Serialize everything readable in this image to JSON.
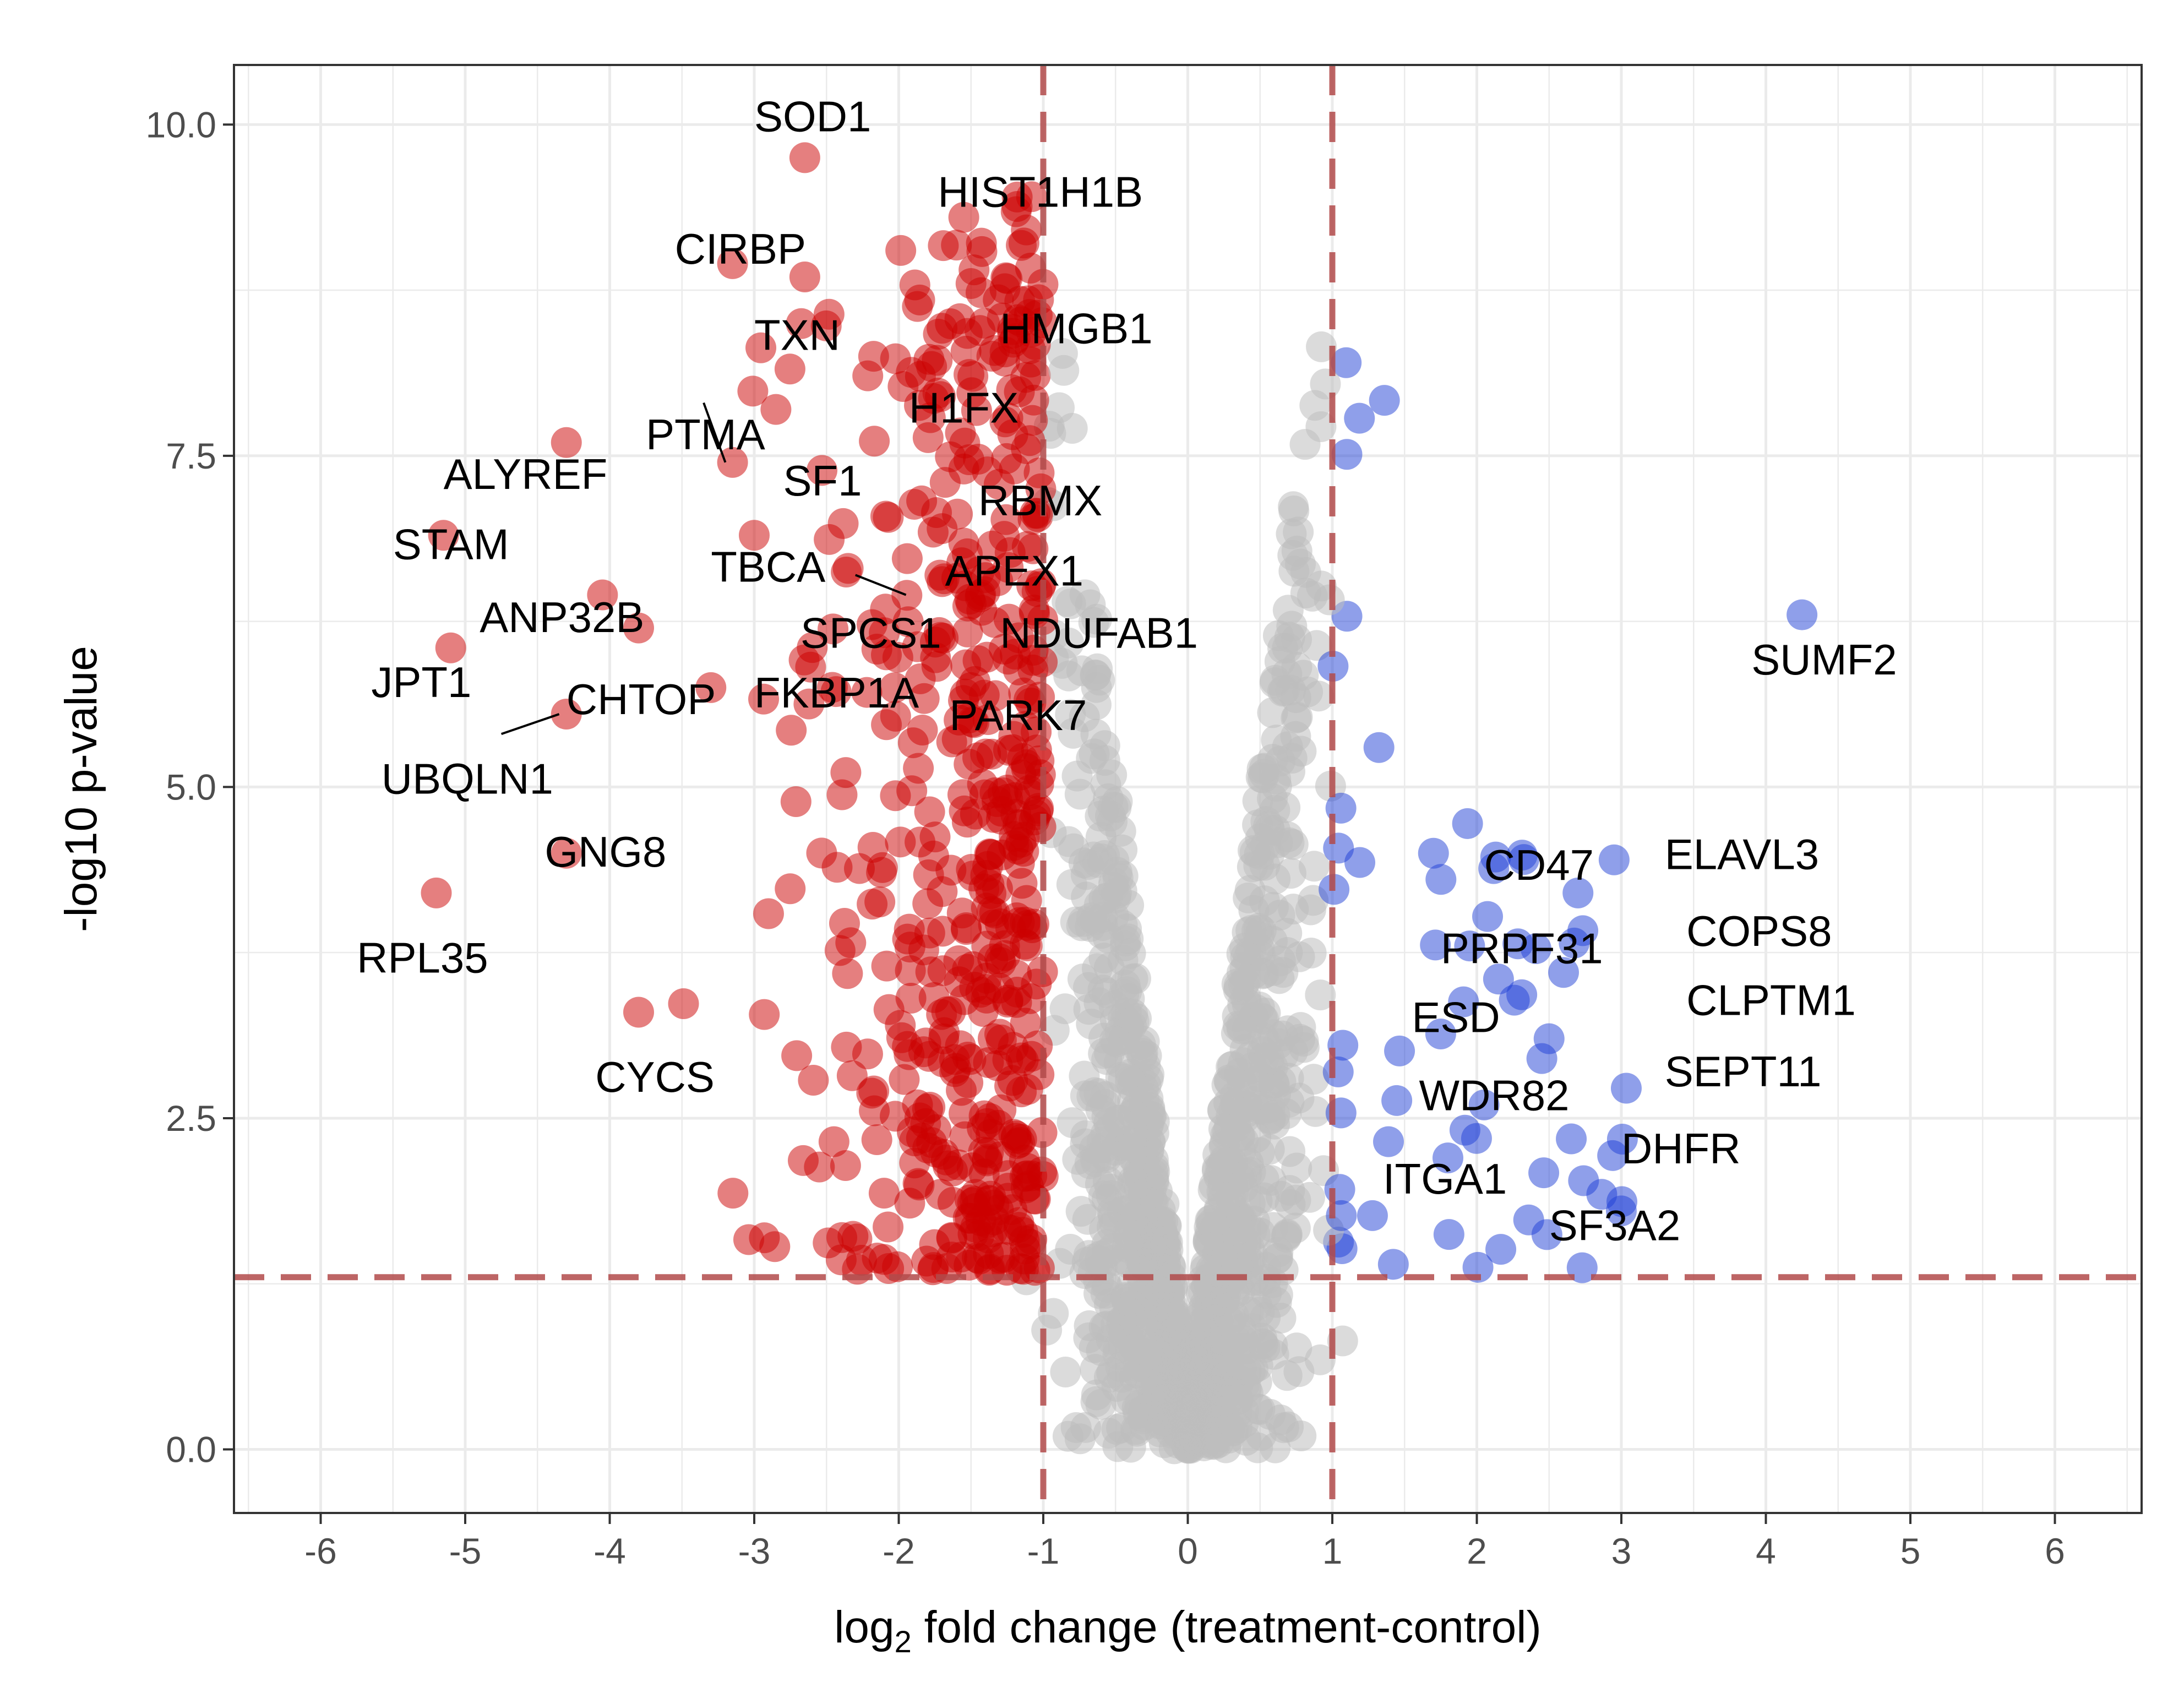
{
  "chart_data": {
    "type": "scatter",
    "title": "",
    "xlabel": {
      "base": "log",
      "sub": "2",
      "rest": " fold change (treatment-control)"
    },
    "ylabel": "-log10 p-value",
    "xlim": [
      -6.6,
      6.6
    ],
    "ylim": [
      -0.48,
      10.45
    ],
    "x_ticks": [
      -6,
      -5,
      -4,
      -3,
      -2,
      -1,
      0,
      1,
      2,
      3,
      4,
      5,
      6
    ],
    "x_tick_labels": [
      "-6",
      "-5",
      "-4",
      "-3",
      "-2",
      "-1",
      "0",
      "1",
      "2",
      "3",
      "4",
      "5",
      "6"
    ],
    "y_ticks": [
      0,
      2.5,
      5,
      7.5,
      10
    ],
    "y_tick_labels": [
      "0.0",
      "2.5",
      "5.0",
      "7.5",
      "10.0"
    ],
    "grid": true,
    "threshold_lines": {
      "fold_change": [
        -1,
        1
      ],
      "pvalue": 1.3
    },
    "colors": {
      "down": "#cc0000",
      "up": "#1f3fd6",
      "ns": "#bdbdbd",
      "threshold": "#b24a4a",
      "grid": "#ebebeb",
      "border": "#333333"
    },
    "labeled_points": [
      {
        "gene": "SOD1",
        "x": -2.65,
        "y": 9.75,
        "group": "down"
      },
      {
        "gene": "HIST1H1B",
        "x": -1.55,
        "y": 9.3,
        "group": "down"
      },
      {
        "gene": "CIRBP",
        "x": -3.15,
        "y": 8.95,
        "group": "down"
      },
      {
        "gene": "HMGB1",
        "x": -1.5,
        "y": 8.8,
        "group": "down"
      },
      {
        "gene": "TXN",
        "x": -2.65,
        "y": 8.85,
        "group": "down"
      },
      {
        "gene": "H1FX",
        "x": -1.85,
        "y": 8.1,
        "group": "down"
      },
      {
        "gene": "PTMA",
        "x": -3.15,
        "y": 7.45,
        "group": "down"
      },
      {
        "gene": "SF1",
        "x": -2.85,
        "y": 7.85,
        "group": "down"
      },
      {
        "gene": "ALYREF",
        "x": -4.3,
        "y": 7.6,
        "group": "down"
      },
      {
        "gene": "RBMX",
        "x": -1.55,
        "y": 7.4,
        "group": "down"
      },
      {
        "gene": "STAM",
        "x": -5.15,
        "y": 6.9,
        "group": "down"
      },
      {
        "gene": "TBCA",
        "x": -3.0,
        "y": 6.9,
        "group": "down"
      },
      {
        "gene": "APEX1",
        "x": -1.7,
        "y": 6.95,
        "group": "down"
      },
      {
        "gene": "ANP32B",
        "x": -4.05,
        "y": 6.45,
        "group": "down"
      },
      {
        "gene": "SPCS1",
        "x": -2.35,
        "y": 6.65,
        "group": "down"
      },
      {
        "gene": "NDUFAB1",
        "x": -1.7,
        "y": 6.55,
        "group": "down"
      },
      {
        "gene": "JPT1",
        "x": -5.1,
        "y": 6.05,
        "group": "down"
      },
      {
        "gene": "CHTOP",
        "x": -3.8,
        "y": 6.2,
        "group": "down"
      },
      {
        "gene": "FKBP1A",
        "x": -3.3,
        "y": 5.75,
        "group": "down"
      },
      {
        "gene": "PARK7",
        "x": -1.5,
        "y": 5.75,
        "group": "down"
      },
      {
        "gene": "UBQLN1",
        "x": -4.3,
        "y": 5.55,
        "group": "down"
      },
      {
        "gene": "GNG8",
        "x": -4.3,
        "y": 4.5,
        "group": "down"
      },
      {
        "gene": "RPL35",
        "x": -5.2,
        "y": 4.2,
        "group": "down"
      },
      {
        "gene": "CYCS",
        "x": -3.8,
        "y": 3.3,
        "group": "down"
      },
      {
        "gene": "SUMF2",
        "x": 4.25,
        "y": 6.3,
        "group": "up"
      },
      {
        "gene": "CD47",
        "x": 1.7,
        "y": 4.5,
        "group": "up"
      },
      {
        "gene": "ELAVL3",
        "x": 2.95,
        "y": 4.45,
        "group": "up"
      },
      {
        "gene": "COPS8",
        "x": 2.7,
        "y": 4.2,
        "group": "up"
      },
      {
        "gene": "PRPF31",
        "x": 1.95,
        "y": 3.8,
        "group": "up"
      },
      {
        "gene": "CLPTM1",
        "x": 2.6,
        "y": 3.6,
        "group": "up"
      },
      {
        "gene": "ESD",
        "x": 2.15,
        "y": 3.55,
        "group": "up"
      },
      {
        "gene": "SEPT11",
        "x": 2.5,
        "y": 3.1,
        "group": "up"
      },
      {
        "gene": "WDR82",
        "x": 2.45,
        "y": 2.95,
        "group": "up"
      },
      {
        "gene": "DHFR",
        "x": 2.05,
        "y": 2.6,
        "group": "up"
      },
      {
        "gene": "ITGA1",
        "x": 1.8,
        "y": 2.2,
        "group": "up"
      },
      {
        "gene": "SF3A2",
        "x": 3.0,
        "y": 1.8,
        "group": "up"
      }
    ],
    "gene_label_positions": [
      {
        "gene": "SOD1",
        "x": -3.0,
        "y": 9.95
      },
      {
        "gene": "HIST1H1B",
        "x": -1.73,
        "y": 9.38
      },
      {
        "gene": "CIRBP",
        "x": -3.55,
        "y": 8.95
      },
      {
        "gene": "HMGB1",
        "x": -1.3,
        "y": 8.35
      },
      {
        "gene": "TXN",
        "x": -3.0,
        "y": 8.3
      },
      {
        "gene": "H1FX",
        "x": -1.93,
        "y": 7.75
      },
      {
        "gene": "PTMA",
        "x": -3.75,
        "y": 7.55
      },
      {
        "gene": "SF1",
        "x": -2.8,
        "y": 7.2
      },
      {
        "gene": "ALYREF",
        "x": -5.15,
        "y": 7.25
      },
      {
        "gene": "RBMX",
        "x": -1.45,
        "y": 7.05
      },
      {
        "gene": "STAM",
        "x": -5.5,
        "y": 6.72
      },
      {
        "gene": "TBCA",
        "x": -3.3,
        "y": 6.55
      },
      {
        "gene": "APEX1",
        "x": -1.68,
        "y": 6.52
      },
      {
        "gene": "ANP32B",
        "x": -4.9,
        "y": 6.17
      },
      {
        "gene": "SPCS1",
        "x": -2.68,
        "y": 6.05
      },
      {
        "gene": "NDUFAB1",
        "x": -1.3,
        "y": 6.05
      },
      {
        "gene": "JPT1",
        "x": -5.65,
        "y": 5.68
      },
      {
        "gene": "CHTOP",
        "x": -4.3,
        "y": 5.55
      },
      {
        "gene": "FKBP1A",
        "x": -3.0,
        "y": 5.6
      },
      {
        "gene": "PARK7",
        "x": -1.65,
        "y": 5.43
      },
      {
        "gene": "UBQLN1",
        "x": -5.58,
        "y": 4.95
      },
      {
        "gene": "GNG8",
        "x": -4.45,
        "y": 4.4
      },
      {
        "gene": "RPL35",
        "x": -5.75,
        "y": 3.6
      },
      {
        "gene": "CYCS",
        "x": -4.1,
        "y": 2.7
      },
      {
        "gene": "SUMF2",
        "x": 3.9,
        "y": 5.85
      },
      {
        "gene": "CD47",
        "x": 2.05,
        "y": 4.3
      },
      {
        "gene": "ELAVL3",
        "x": 3.3,
        "y": 4.38
      },
      {
        "gene": "COPS8",
        "x": 3.45,
        "y": 3.8
      },
      {
        "gene": "PRPF31",
        "x": 1.75,
        "y": 3.67
      },
      {
        "gene": "CLPTM1",
        "x": 3.45,
        "y": 3.28
      },
      {
        "gene": "ESD",
        "x": 1.55,
        "y": 3.15
      },
      {
        "gene": "SEPT11",
        "x": 3.3,
        "y": 2.74
      },
      {
        "gene": "WDR82",
        "x": 1.6,
        "y": 2.56
      },
      {
        "gene": "DHFR",
        "x": 3.0,
        "y": 2.16
      },
      {
        "gene": "ITGA1",
        "x": 1.35,
        "y": 1.93
      },
      {
        "gene": "SF3A2",
        "x": 2.5,
        "y": 1.58
      }
    ],
    "leader_lines": [
      {
        "gene": "PTMA",
        "from": [
          -3.35,
          7.9
        ],
        "to": [
          -3.2,
          7.45
        ]
      },
      {
        "gene": "UBQLN1",
        "from": [
          -4.75,
          5.4
        ],
        "to": [
          -4.35,
          5.55
        ]
      },
      {
        "gene": "SPCS1",
        "from": [
          -2.3,
          6.6
        ],
        "to": [
          -1.95,
          6.45
        ]
      }
    ]
  }
}
